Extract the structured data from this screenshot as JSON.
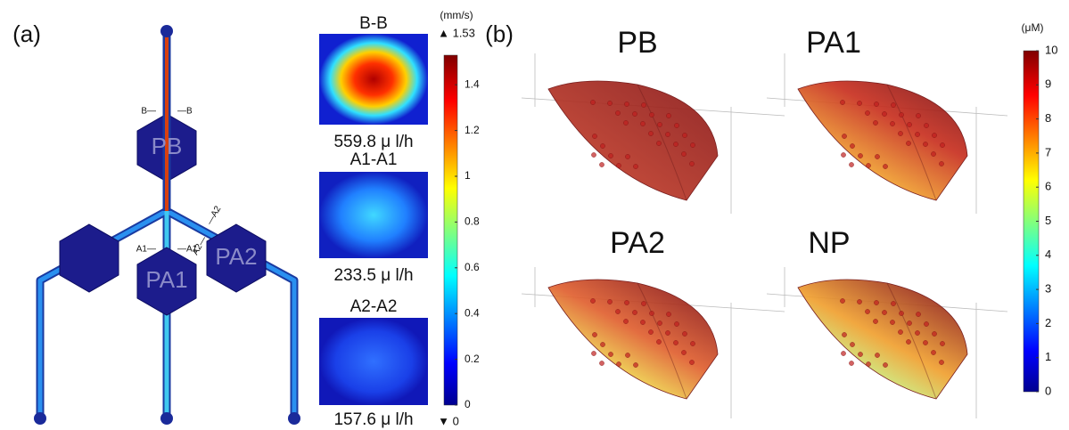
{
  "panel_a": {
    "label": "(a)",
    "chamber_labels": [
      "PB",
      "PA1",
      "PA2"
    ],
    "section_marks": [
      "B—",
      "—B",
      "A1—",
      "—A1",
      "A2—",
      "—A2"
    ],
    "sections": [
      {
        "title": "B-B",
        "flow": "559.8 μ l/h"
      },
      {
        "title": "A1-A1",
        "flow": "233.5 μ l/h"
      },
      {
        "title": "A2-A2",
        "flow": "157.6 μ l/h"
      }
    ],
    "colorbar": {
      "unit": "(mm/s)",
      "max_label": "▲ 1.53",
      "min_label": "▼ 0",
      "ticks": [
        0,
        0.2,
        0.4,
        0.6,
        0.8,
        1,
        1.2,
        1.4
      ]
    }
  },
  "panel_b": {
    "label": "(b)",
    "views": [
      "PB",
      "PA1",
      "PA2",
      "NP"
    ],
    "colorbar": {
      "unit": "(μM)",
      "ticks": [
        0,
        1,
        2,
        3,
        4,
        5,
        6,
        7,
        8,
        9,
        10
      ]
    }
  }
}
